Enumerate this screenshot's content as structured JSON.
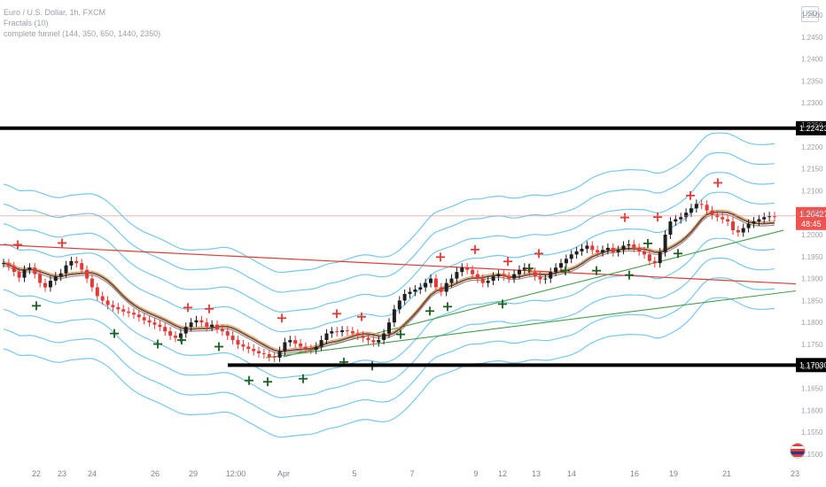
{
  "legend": {
    "symbol": "Euro / U.S. Dollar, 1h, FXCM",
    "indicator1": "Fractals (10)",
    "indicator2": "complete funnel (144, 350, 650, 1440, 2350)"
  },
  "currency": "USD",
  "chart_data": {
    "type": "line",
    "x_ticks": [
      "22",
      "23",
      "24",
      "26",
      "29",
      "12:00",
      "Apr",
      "5",
      "7",
      "9",
      "12",
      "13",
      "14",
      "16",
      "19",
      "21",
      "23"
    ],
    "y_ticks": [
      "1.2500",
      "1.2450",
      "1.2400",
      "1.2350",
      "1.2300",
      "1.2250",
      "1.2200",
      "1.2150",
      "1.2100",
      "1.2050",
      "1.2000",
      "1.1950",
      "1.1900",
      "1.1850",
      "1.1800",
      "1.1750",
      "1.1700",
      "1.1650",
      "1.1600",
      "1.1550",
      "1.1500"
    ],
    "ylim": [
      1.149,
      1.251
    ],
    "price_series": [
      1.1935,
      1.1928,
      1.1915,
      1.1902,
      1.192,
      1.1925,
      1.191,
      1.189,
      1.188,
      1.1895,
      1.1905,
      1.1912,
      1.193,
      1.194,
      1.1935,
      1.192,
      1.19,
      1.188,
      1.186,
      1.185,
      1.184,
      1.1835,
      1.183,
      1.1825,
      1.1822,
      1.1818,
      1.1812,
      1.1805,
      1.18,
      1.1795,
      1.179,
      1.178,
      1.177,
      1.1765,
      1.1775,
      1.179,
      1.18,
      1.1805,
      1.18,
      1.179,
      1.1795,
      1.1785,
      1.178,
      1.177,
      1.176,
      1.175,
      1.1745,
      1.174,
      1.1735,
      1.173,
      1.1728,
      1.1722,
      1.172,
      1.1735,
      1.1755,
      1.176,
      1.1752,
      1.1745,
      1.174,
      1.1738,
      1.1745,
      1.176,
      1.1775,
      1.178,
      1.1778,
      1.1782,
      1.178,
      1.1775,
      1.177,
      1.1765,
      1.176,
      1.1755,
      1.176,
      1.1775,
      1.18,
      1.183,
      1.185,
      1.1865,
      1.187,
      1.1875,
      1.188,
      1.189,
      1.19,
      1.188,
      1.187,
      1.189,
      1.19,
      1.1915,
      1.1925,
      1.192,
      1.191,
      1.19,
      1.189,
      1.1895,
      1.1905,
      1.191,
      1.1905,
      1.19,
      1.191,
      1.192,
      1.1925,
      1.1915,
      1.1905,
      1.1898,
      1.19,
      1.1915,
      1.1925,
      1.1935,
      1.1945,
      1.1955,
      1.1962,
      1.1968,
      1.1975,
      1.1965,
      1.196,
      1.1965,
      1.197,
      1.196,
      1.1965,
      1.1975,
      1.1978,
      1.197,
      1.1962,
      1.1955,
      1.194,
      1.1935,
      1.196,
      1.2,
      1.203,
      1.2035,
      1.204,
      1.205,
      1.206,
      1.207,
      1.2068,
      1.2055,
      1.2045,
      1.204,
      1.2035,
      1.203,
      1.201,
      1.2005,
      1.2015,
      1.2025,
      1.203,
      1.2035,
      1.204,
      1.2042,
      1.204
    ],
    "fractal_highs": [
      1.1977,
      1.1981,
      1.1834,
      1.1831,
      1.181,
      1.182,
      1.1813,
      1.1949,
      1.1966,
      1.1939,
      1.1957,
      1.2039,
      1.204,
      1.2089,
      1.2118
    ],
    "fractal_lows": [
      1.1838,
      1.1775,
      1.1751,
      1.176,
      1.1745,
      1.1668,
      1.1665,
      1.1672,
      1.171,
      1.1701,
      1.1773,
      1.1826,
      1.1836,
      1.1842,
      1.1923,
      1.1918,
      1.1918,
      1.1908,
      1.198,
      1.1957
    ],
    "horizontal_levels": [
      {
        "price": 1.22423,
        "label": "1.22423"
      },
      {
        "price": 1.1703,
        "label": "1.17030"
      }
    ],
    "last_price": {
      "price": 1.20427,
      "label": "1.20427",
      "countdown": "48:45"
    },
    "trendlines": {
      "resistance": {
        "from": 1.1977,
        "to": 1.1888,
        "color": "#e53935"
      },
      "support_1": {
        "from": 1.172,
        "to": 1.1872,
        "color": "#43a047"
      },
      "support_2": {
        "from": 1.1722,
        "to": 1.201,
        "color": "#43a047"
      }
    },
    "colors": {
      "up": "#1e1e1e",
      "down": "#e53935",
      "fractal_high": "#e53935",
      "fractal_low": "#1b5e20",
      "funnel": "#5bc0eb",
      "ma_brown": "#6d4c41",
      "ma_orange": "#e6a15a"
    },
    "grid": false
  }
}
